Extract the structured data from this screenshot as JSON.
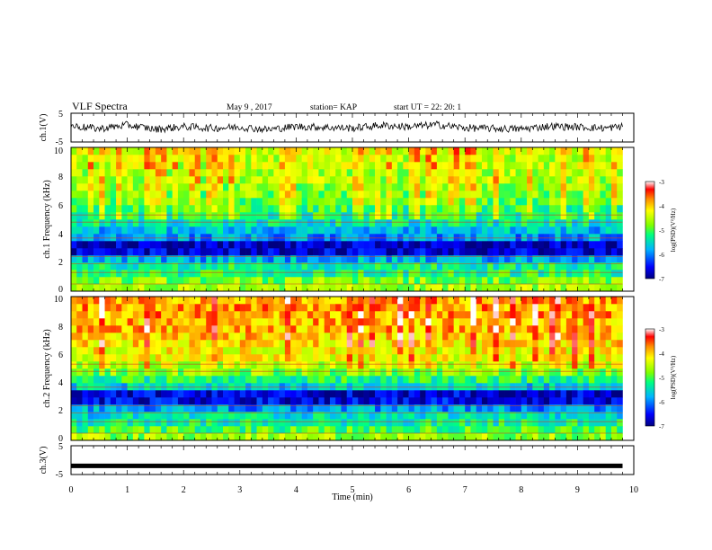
{
  "header": {
    "title": "VLF Spectra",
    "date": "May 9 , 2017",
    "station": "station= KAP",
    "start": "start UT = 22: 20: 1"
  },
  "colors": {
    "trace": "#000000",
    "colormap": [
      "#000080",
      "#0000ff",
      "#00b4ff",
      "#00e6b4",
      "#00ff00",
      "#b4ff00",
      "#ffff00",
      "#ff9600",
      "#ff0000",
      "#ffffff"
    ]
  },
  "chart_data": [
    {
      "type": "line",
      "panel": "ch1-waveform",
      "ylabel": "ch.1(V)",
      "ylim": [
        -5,
        5
      ],
      "y_ticks": [
        "5",
        "-5"
      ],
      "xlim": [
        0,
        10
      ],
      "x": [
        0,
        0.5,
        1,
        1.5,
        2,
        2.5,
        3,
        3.5,
        4,
        4.5,
        5,
        5.5,
        6,
        6.5,
        7,
        7.5,
        8,
        8.5,
        9,
        9.5,
        9.8
      ],
      "y": [
        0.6,
        -0.4,
        0.9,
        -0.6,
        0.3,
        -0.2,
        0.2,
        -0.7,
        0.4,
        0.1,
        -0.2,
        0.8,
        0.3,
        1.0,
        -0.1,
        -0.3,
        -0.5,
        0.5,
        0.2,
        -0.2,
        0.4
      ]
    },
    {
      "type": "heatmap",
      "panel": "ch1-spectrogram",
      "ylabel": "ch.1 Frequency (kHz)",
      "xlim": [
        0,
        9.8
      ],
      "ylim": [
        0,
        10
      ],
      "y_ticks": [
        "0",
        "2",
        "4",
        "6",
        "8",
        "10"
      ],
      "frequency_kHz": [
        0.25,
        0.75,
        1.25,
        1.75,
        2.25,
        2.75,
        3.25,
        3.75,
        4.25,
        4.75,
        5.25,
        5.75,
        6.25,
        6.75,
        7.25,
        7.75,
        8.25,
        8.75,
        9.25,
        9.75
      ],
      "mean_log_psd": [
        -4.6,
        -4.8,
        -5.2,
        -5.3,
        -5.8,
        -6.7,
        -6.8,
        -5.9,
        -5.7,
        -5.4,
        -5.2,
        -5.1,
        -4.9,
        -4.8,
        -4.7,
        -4.6,
        -4.6,
        -4.5,
        -4.5,
        -4.4
      ],
      "colorbar": {
        "label": "log(PSD)(V²/Hz)",
        "range": [
          -7,
          -3
        ],
        "ticks": [
          "-3",
          "-4",
          "-5",
          "-6",
          "-7"
        ]
      }
    },
    {
      "type": "heatmap",
      "panel": "ch2-spectrogram",
      "ylabel": "ch.2 Frequency (kHz)",
      "xlim": [
        0,
        9.8
      ],
      "ylim": [
        0,
        10
      ],
      "y_ticks": [
        "0",
        "2",
        "4",
        "6",
        "8",
        "10"
      ],
      "frequency_kHz": [
        0.25,
        0.75,
        1.25,
        1.75,
        2.25,
        2.75,
        3.25,
        3.75,
        4.25,
        4.75,
        5.25,
        5.75,
        6.25,
        6.75,
        7.25,
        7.75,
        8.25,
        8.75,
        9.25,
        9.75
      ],
      "mean_log_psd": [
        -4.7,
        -5.0,
        -5.3,
        -5.5,
        -5.9,
        -6.6,
        -6.7,
        -5.6,
        -5.2,
        -4.8,
        -4.5,
        -4.3,
        -4.2,
        -4.1,
        -4.0,
        -3.9,
        -3.9,
        -3.8,
        -3.8,
        -3.8
      ],
      "colorbar": {
        "label": "log(PSD)(V²/Hz)",
        "range": [
          -7,
          -3
        ],
        "ticks": [
          "-3",
          "-4",
          "-5",
          "-6",
          "-7"
        ]
      }
    },
    {
      "type": "line",
      "panel": "ch3-waveform",
      "ylabel": "ch.3(V)",
      "ylim": [
        -5,
        5
      ],
      "y_ticks": [
        "5",
        "-5"
      ],
      "xlim": [
        0,
        10
      ],
      "x": [
        0,
        9.8
      ],
      "y": [
        -2,
        -2
      ]
    }
  ],
  "xaxis": {
    "label": "Time (min)",
    "ticks": [
      "0",
      "1",
      "2",
      "3",
      "4",
      "5",
      "6",
      "7",
      "8",
      "9",
      "10"
    ]
  }
}
